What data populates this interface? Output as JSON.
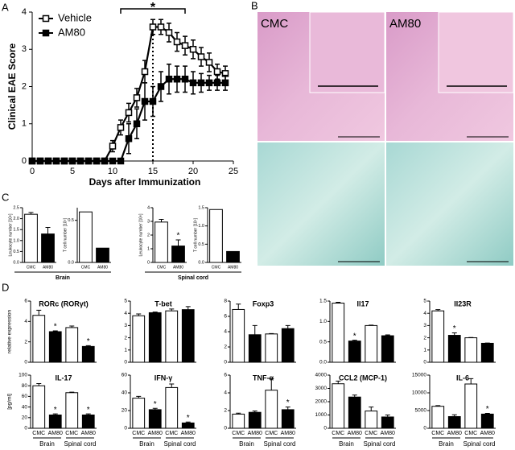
{
  "panel_labels": [
    "A",
    "B",
    "C",
    "D"
  ],
  "micrographs": {
    "labels": [
      "CMC",
      "AM80"
    ]
  },
  "chart_data": [
    {
      "type": "line",
      "ylabel": "Clinical EAE Score",
      "xlabel": "Days after Immunization",
      "x": [
        0,
        1,
        2,
        3,
        4,
        5,
        6,
        7,
        8,
        9,
        10,
        11,
        12,
        13,
        14,
        15,
        16,
        17,
        18,
        19,
        20,
        21,
        22,
        23,
        24
      ],
      "xlim": [
        0,
        25
      ],
      "xticks": [
        0,
        5,
        10,
        15,
        20,
        25
      ],
      "ylim": [
        0,
        4
      ],
      "yticks": [
        0,
        1,
        2,
        3,
        4
      ],
      "series": [
        {
          "name": "Vehicle",
          "color": "#000000",
          "marker": "open-square",
          "values": [
            0,
            0,
            0,
            0,
            0,
            0,
            0,
            0,
            0,
            0,
            0.4,
            0.9,
            1.3,
            1.7,
            2.4,
            3.6,
            3.6,
            3.45,
            3.2,
            3.1,
            3.0,
            2.8,
            2.65,
            2.4,
            2.35
          ],
          "errors": [
            0,
            0,
            0,
            0,
            0,
            0,
            0,
            0,
            0,
            0,
            0.15,
            0.2,
            0.25,
            0.25,
            0.3,
            0.2,
            0.2,
            0.25,
            0.25,
            0.25,
            0.25,
            0.25,
            0.25,
            0.2,
            0.2
          ]
        },
        {
          "name": "AM80",
          "color": "#000000",
          "marker": "filled-square",
          "values": [
            0,
            0,
            0,
            0,
            0,
            0,
            0,
            0,
            0,
            0,
            0,
            0,
            0.6,
            1.0,
            1.6,
            1.6,
            2.0,
            2.2,
            2.2,
            2.2,
            2.1,
            2.1,
            2.1,
            2.1,
            2.1
          ],
          "errors": [
            0,
            0,
            0,
            0,
            0,
            0,
            0,
            0,
            0,
            0,
            0,
            0,
            0.4,
            0.4,
            0.5,
            0.4,
            0.4,
            0.4,
            0.35,
            0.35,
            0.3,
            0.25,
            0.2,
            0.2,
            0.2
          ]
        }
      ],
      "significance": {
        "label": "*",
        "x": [
          11,
          19
        ]
      },
      "reference_x": 15
    },
    {
      "type": "bar",
      "ylabel": "Leukocyte number [10⁶]",
      "ylim": [
        0,
        2.5
      ],
      "yticks": [
        {
          "value": 0,
          "label": "0.0"
        },
        {
          "value": 0.5,
          "label": "0.5"
        },
        {
          "value": 1,
          "label": "1.0"
        },
        {
          "value": 1.5,
          "label": "1.5"
        },
        {
          "value": 2,
          "label": "2.0"
        },
        {
          "value": 2.5,
          "label": "2.5"
        }
      ],
      "categories": [
        "CMC",
        "AM80"
      ],
      "values": [
        2.2,
        1.3
      ],
      "errors": [
        0.08,
        0.3
      ],
      "colors": [
        "#ffffff",
        "#000000"
      ],
      "group": "Brain"
    },
    {
      "type": "bar",
      "ylabel": "T cell number [10⁵]",
      "ylim": [
        0,
        0.65
      ],
      "yticks": [
        {
          "value": 0,
          "label": "0.0"
        },
        {
          "value": 0.5,
          "label": "0.5"
        }
      ],
      "categories": [
        "CMC",
        "AM80"
      ],
      "values": [
        0.6,
        0.17
      ],
      "colors": [
        "#ffffff",
        "#000000"
      ]
    },
    {
      "type": "bar",
      "ylabel": "Leukocyte number [10⁶]",
      "ylim": [
        0,
        4
      ],
      "yticks": [
        0,
        1,
        2,
        3,
        4
      ],
      "categories": [
        "CMC",
        "AM80"
      ],
      "values": [
        2.95,
        1.2
      ],
      "errors": [
        0.2,
        0.45
      ],
      "colors": [
        "#ffffff",
        "#000000"
      ],
      "significant": [
        false,
        true
      ],
      "sig_label": "*",
      "group": "Spinal cord"
    },
    {
      "type": "bar",
      "ylabel": "T cell number [10⁵]",
      "ylim": [
        0,
        1.5
      ],
      "yticks": [
        {
          "value": 0,
          "label": "0.0"
        },
        {
          "value": 0.5,
          "label": "0.5"
        },
        {
          "value": 1,
          "label": "1.0"
        },
        {
          "value": 1.5,
          "label": "1.5"
        }
      ],
      "categories": [
        "CMC",
        "AM80"
      ],
      "values": [
        1.45,
        0.3
      ],
      "colors": [
        "#ffffff",
        "#000000"
      ]
    },
    {
      "type": "bar",
      "title": "RORc (RORγt)",
      "ylabel": "relative expression",
      "ylim": [
        0,
        6
      ],
      "yticks": [
        0,
        2,
        4,
        6
      ],
      "values": [
        4.6,
        3.0,
        3.4,
        1.55
      ],
      "errors": [
        0.5,
        0.08,
        0.15,
        0.08
      ],
      "colors": [
        "#ffffff",
        "#000000",
        "#ffffff",
        "#000000"
      ],
      "significant": [
        false,
        true,
        false,
        true
      ],
      "sig_label": "*"
    },
    {
      "type": "bar",
      "title": "T-bet",
      "ylim": [
        0,
        5
      ],
      "yticks": [
        0,
        1,
        2,
        3,
        4,
        5
      ],
      "values": [
        3.8,
        4.05,
        4.2,
        4.3
      ],
      "errors": [
        0.15,
        0.05,
        0.15,
        0.25
      ],
      "colors": [
        "#ffffff",
        "#000000",
        "#ffffff",
        "#000000"
      ]
    },
    {
      "type": "bar",
      "title": "Foxp3",
      "ylim": [
        0,
        8
      ],
      "yticks": [
        0,
        2,
        4,
        6,
        8
      ],
      "values": [
        6.9,
        3.6,
        3.7,
        4.4
      ],
      "errors": [
        0.7,
        1.2,
        0.05,
        0.4
      ],
      "colors": [
        "#ffffff",
        "#000000",
        "#ffffff",
        "#000000"
      ]
    },
    {
      "type": "bar",
      "title": "Il17",
      "ylim": [
        0,
        1.5
      ],
      "yticks": [
        {
          "value": 0,
          "label": "0.0"
        },
        {
          "value": 0.5,
          "label": "0.5"
        },
        {
          "value": 1,
          "label": "1.0"
        },
        {
          "value": 1.5,
          "label": "1.5"
        }
      ],
      "values": [
        1.45,
        0.52,
        0.9,
        0.65
      ],
      "errors": [
        0.02,
        0.02,
        0.01,
        0.02
      ],
      "colors": [
        "#ffffff",
        "#000000",
        "#ffffff",
        "#000000"
      ],
      "significant": [
        false,
        true,
        false,
        false
      ],
      "sig_label": "*"
    },
    {
      "type": "bar",
      "title": "Il23R",
      "ylim": [
        0,
        5
      ],
      "yticks": [
        0,
        1,
        2,
        3,
        4,
        5
      ],
      "values": [
        4.2,
        2.2,
        2.0,
        1.55
      ],
      "errors": [
        0.1,
        0.2,
        0.02,
        0.02
      ],
      "colors": [
        "#ffffff",
        "#000000",
        "#ffffff",
        "#000000"
      ],
      "significant": [
        false,
        true,
        false,
        false
      ],
      "sig_label": "*"
    },
    {
      "type": "bar",
      "title": "IL-17",
      "ylabel": "[pg/ml]",
      "ylim": [
        0,
        100
      ],
      "yticks": [
        0,
        20,
        40,
        60,
        80,
        100
      ],
      "categories": [
        "CMC",
        "AM80",
        "CMC",
        "AM80"
      ],
      "groups": [
        "Brain",
        "Spinal cord"
      ],
      "values": [
        80,
        25,
        67,
        25
      ],
      "errors": [
        4,
        2,
        1,
        2
      ],
      "colors": [
        "#ffffff",
        "#000000",
        "#ffffff",
        "#000000"
      ],
      "significant": [
        false,
        true,
        false,
        true
      ],
      "sig_label": "*"
    },
    {
      "type": "bar",
      "title": "IFN-γ",
      "ylim": [
        0,
        60
      ],
      "yticks": [
        0,
        20,
        40,
        60
      ],
      "categories": [
        "CMC",
        "AM80",
        "CMC",
        "AM80"
      ],
      "groups": [
        "Brain",
        "Spinal cord"
      ],
      "values": [
        34,
        21,
        46,
        6
      ],
      "errors": [
        2,
        1.5,
        4,
        1
      ],
      "colors": [
        "#ffffff",
        "#000000",
        "#ffffff",
        "#000000"
      ],
      "significant": [
        false,
        true,
        false,
        true
      ],
      "sig_label": "*"
    },
    {
      "type": "bar",
      "title": "TNF-α",
      "ylim": [
        0,
        6
      ],
      "yticks": [
        0,
        2,
        4,
        6
      ],
      "categories": [
        "CMC",
        "AM80",
        "CMC",
        "AM80"
      ],
      "groups": [
        "Brain",
        "Spinal cord"
      ],
      "values": [
        1.6,
        1.8,
        4.3,
        2.1
      ],
      "errors": [
        0.1,
        0.15,
        1.3,
        0.3
      ],
      "colors": [
        "#ffffff",
        "#000000",
        "#ffffff",
        "#000000"
      ],
      "significant": [
        false,
        false,
        false,
        true
      ],
      "sig_label": "*"
    },
    {
      "type": "bar",
      "title": "CCL2 (MCP-1)",
      "ylim": [
        0,
        4000
      ],
      "yticks": [
        0,
        1000,
        2000,
        3000,
        4000
      ],
      "categories": [
        "CMC",
        "AM80",
        "CMC",
        "AM80"
      ],
      "groups": [
        "Brain",
        "Spinal cord"
      ],
      "values": [
        3350,
        2350,
        1300,
        850
      ],
      "errors": [
        200,
        150,
        300,
        150
      ],
      "colors": [
        "#ffffff",
        "#000000",
        "#ffffff",
        "#000000"
      ]
    },
    {
      "type": "bar",
      "title": "IL-6",
      "ylim": [
        0,
        15000
      ],
      "yticks": [
        0,
        5000,
        10000,
        15000
      ],
      "categories": [
        "CMC",
        "AM80",
        "CMC",
        "AM80"
      ],
      "groups": [
        "Brain",
        "Spinal cord"
      ],
      "values": [
        6200,
        3300,
        12500,
        4000
      ],
      "errors": [
        200,
        500,
        1500,
        200
      ],
      "colors": [
        "#ffffff",
        "#000000",
        "#ffffff",
        "#000000"
      ],
      "significant": [
        false,
        false,
        false,
        true
      ],
      "sig_label": "*"
    }
  ]
}
